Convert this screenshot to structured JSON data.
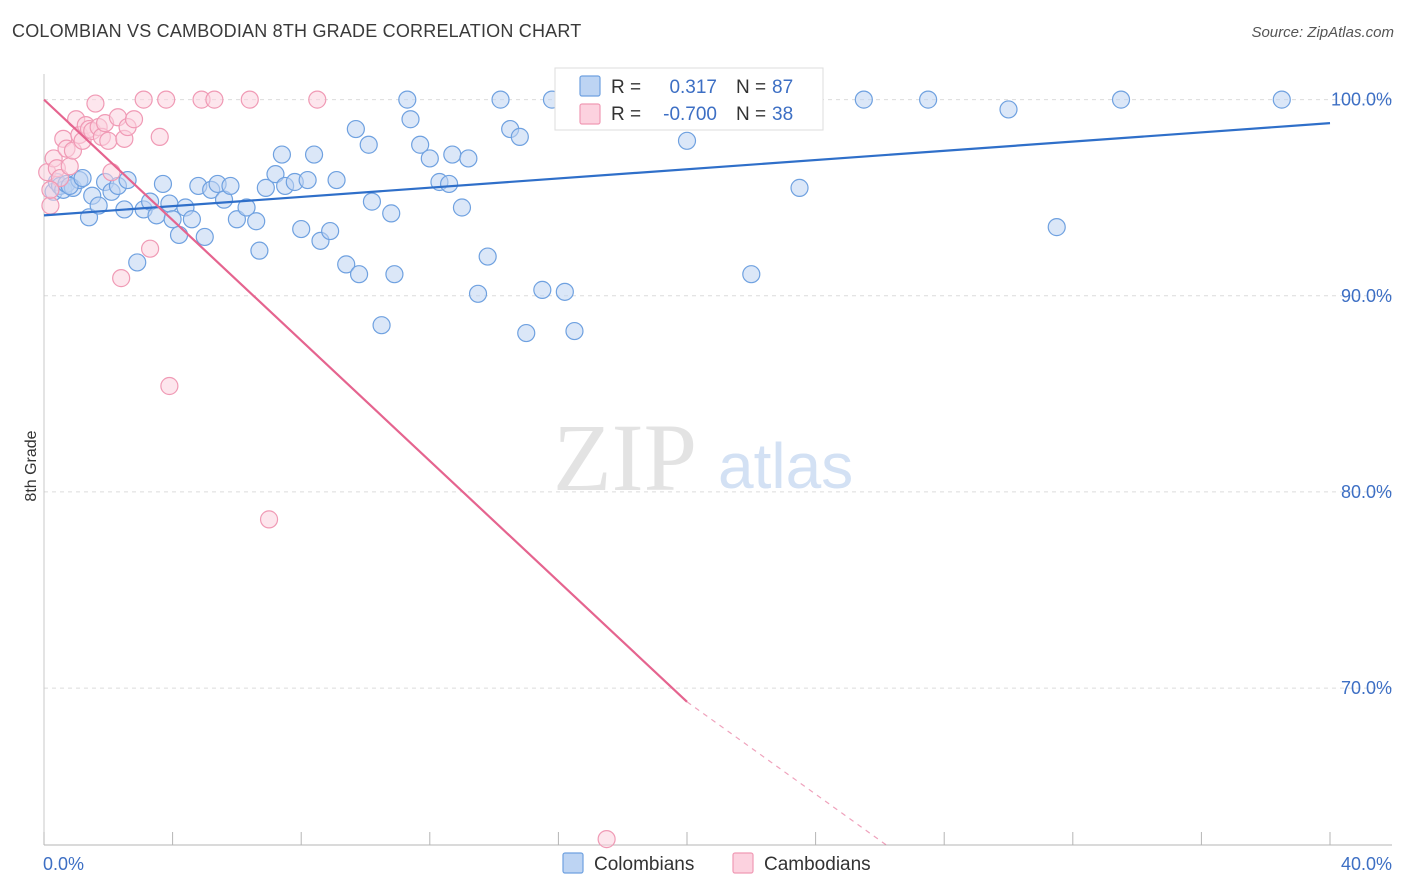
{
  "header": {
    "title": "COLOMBIAN VS CAMBODIAN 8TH GRADE CORRELATION CHART",
    "source": "Source: ZipAtlas.com"
  },
  "watermark": {
    "zip": "ZIP",
    "atlas": "atlas"
  },
  "stats": {
    "r_label": "R =",
    "n_label": "N =",
    "rows": [
      {
        "r": "0.317",
        "n": "87",
        "color": "#6fa1e0",
        "fill": "#bdd4f3"
      },
      {
        "r": "-0.700",
        "n": "38",
        "color": "#f09ab5",
        "fill": "#fcd2df"
      }
    ]
  },
  "chart_data": {
    "type": "scatter",
    "title": "COLOMBIAN VS CAMBODIAN 8TH GRADE CORRELATION CHART",
    "xlabel": "",
    "ylabel": "8th Grade",
    "xlim": [
      0,
      40
    ],
    "ylim": [
      62,
      101
    ],
    "x_ticks": [
      0,
      4,
      8,
      12,
      16,
      20,
      24,
      28,
      32,
      36,
      40
    ],
    "x_tick_labels": [
      {
        "value": 0,
        "label": "0.0%"
      },
      {
        "value": 40,
        "label": "40.0%"
      }
    ],
    "y_tick_labels": [
      {
        "value": 100,
        "label": "100.0%"
      },
      {
        "value": 90,
        "label": "90.0%"
      },
      {
        "value": 80,
        "label": "80.0%"
      },
      {
        "value": 70,
        "label": "70.0%"
      }
    ],
    "grid": true,
    "legend_position": "bottom-center",
    "series": [
      {
        "name": "Colombians",
        "color": "#6fa1e0",
        "fill": "#bdd4f3",
        "line_color": "#2f6fc9",
        "trend": {
          "x0": 0,
          "y0": 94.1,
          "x1": 40,
          "y1": 98.8
        },
        "points": [
          [
            0.3,
            95.3
          ],
          [
            0.4,
            95.8
          ],
          [
            0.5,
            95.6
          ],
          [
            0.6,
            95.4
          ],
          [
            0.7,
            95.7
          ],
          [
            0.9,
            95.5
          ],
          [
            1.1,
            95.9
          ],
          [
            1.4,
            94.0
          ],
          [
            1.5,
            95.1
          ],
          [
            1.7,
            94.6
          ],
          [
            1.9,
            95.8
          ],
          [
            2.1,
            95.3
          ],
          [
            2.3,
            95.6
          ],
          [
            2.5,
            94.4
          ],
          [
            2.6,
            95.9
          ],
          [
            2.9,
            91.7
          ],
          [
            3.1,
            94.4
          ],
          [
            3.3,
            94.8
          ],
          [
            3.5,
            94.1
          ],
          [
            3.7,
            95.7
          ],
          [
            3.9,
            94.7
          ],
          [
            4.0,
            93.9
          ],
          [
            4.2,
            93.1
          ],
          [
            4.4,
            94.5
          ],
          [
            4.6,
            93.9
          ],
          [
            4.8,
            95.6
          ],
          [
            5.0,
            93.0
          ],
          [
            5.2,
            95.4
          ],
          [
            5.4,
            95.7
          ],
          [
            5.6,
            94.9
          ],
          [
            5.8,
            95.6
          ],
          [
            6.0,
            93.9
          ],
          [
            6.3,
            94.5
          ],
          [
            6.6,
            93.8
          ],
          [
            6.9,
            95.5
          ],
          [
            7.2,
            96.2
          ],
          [
            7.5,
            95.6
          ],
          [
            7.8,
            95.8
          ],
          [
            8.0,
            93.4
          ],
          [
            8.4,
            97.2
          ],
          [
            8.6,
            92.8
          ],
          [
            8.9,
            93.3
          ],
          [
            9.1,
            95.9
          ],
          [
            9.4,
            91.6
          ],
          [
            9.8,
            91.1
          ],
          [
            10.2,
            94.8
          ],
          [
            10.5,
            88.5
          ],
          [
            10.9,
            91.1
          ],
          [
            11.3,
            100.0
          ],
          [
            11.4,
            99.0
          ],
          [
            11.7,
            97.7
          ],
          [
            12.0,
            97.0
          ],
          [
            12.3,
            95.8
          ],
          [
            12.7,
            97.2
          ],
          [
            13.0,
            94.5
          ],
          [
            13.2,
            97.0
          ],
          [
            13.5,
            90.1
          ],
          [
            13.8,
            92.0
          ],
          [
            14.2,
            100.0
          ],
          [
            14.5,
            98.5
          ],
          [
            14.8,
            98.1
          ],
          [
            15.0,
            88.1
          ],
          [
            15.5,
            90.3
          ],
          [
            15.8,
            100.0
          ],
          [
            16.2,
            90.2
          ],
          [
            16.5,
            88.2
          ],
          [
            17.5,
            100.0
          ],
          [
            18.5,
            100.0
          ],
          [
            20.0,
            97.9
          ],
          [
            22.0,
            91.1
          ],
          [
            22.5,
            100.0
          ],
          [
            23.5,
            95.5
          ],
          [
            25.5,
            100.0
          ],
          [
            27.5,
            100.0
          ],
          [
            30.0,
            99.5
          ],
          [
            31.5,
            93.5
          ],
          [
            33.5,
            100.0
          ],
          [
            38.5,
            100.0
          ],
          [
            0.8,
            95.6
          ],
          [
            1.2,
            96.0
          ],
          [
            7.4,
            97.2
          ],
          [
            9.7,
            98.5
          ],
          [
            10.1,
            97.7
          ],
          [
            10.8,
            94.2
          ],
          [
            12.6,
            95.7
          ],
          [
            6.7,
            92.3
          ],
          [
            8.2,
            95.9
          ]
        ]
      },
      {
        "name": "Cambodians",
        "color": "#f09ab5",
        "fill": "#fcd2df",
        "line_color": "#e5648f",
        "trend": {
          "x0": 0,
          "y0": 100.0,
          "x1": 20,
          "y1": 69.3
        },
        "trend_dashed": {
          "x0": 20,
          "y0": 69.3,
          "x1": 26.2,
          "y1": 62.0
        },
        "points": [
          [
            0.1,
            96.3
          ],
          [
            0.2,
            94.6
          ],
          [
            0.3,
            97.0
          ],
          [
            0.4,
            96.5
          ],
          [
            0.5,
            96.0
          ],
          [
            0.6,
            98.0
          ],
          [
            0.7,
            97.5
          ],
          [
            0.8,
            96.6
          ],
          [
            0.9,
            97.4
          ],
          [
            1.0,
            99.0
          ],
          [
            1.1,
            98.2
          ],
          [
            1.2,
            97.9
          ],
          [
            1.3,
            98.7
          ],
          [
            1.4,
            98.5
          ],
          [
            1.5,
            98.4
          ],
          [
            1.6,
            99.8
          ],
          [
            1.7,
            98.6
          ],
          [
            1.8,
            98.1
          ],
          [
            1.9,
            98.8
          ],
          [
            2.0,
            97.9
          ],
          [
            2.1,
            96.3
          ],
          [
            2.3,
            99.1
          ],
          [
            2.4,
            90.9
          ],
          [
            2.5,
            98.0
          ],
          [
            2.6,
            98.6
          ],
          [
            2.8,
            99.0
          ],
          [
            3.1,
            100.0
          ],
          [
            3.3,
            92.4
          ],
          [
            3.6,
            98.1
          ],
          [
            3.8,
            100.0
          ],
          [
            3.9,
            85.4
          ],
          [
            4.9,
            100.0
          ],
          [
            5.3,
            100.0
          ],
          [
            6.4,
            100.0
          ],
          [
            7.0,
            78.6
          ],
          [
            8.5,
            100.0
          ],
          [
            17.5,
            62.3
          ],
          [
            0.2,
            95.4
          ]
        ]
      }
    ]
  },
  "legend": {
    "items": [
      {
        "label": "Colombians",
        "color": "#6fa1e0",
        "fill": "#bdd4f3"
      },
      {
        "label": "Cambodians",
        "color": "#f09ab5",
        "fill": "#fcd2df"
      }
    ]
  }
}
